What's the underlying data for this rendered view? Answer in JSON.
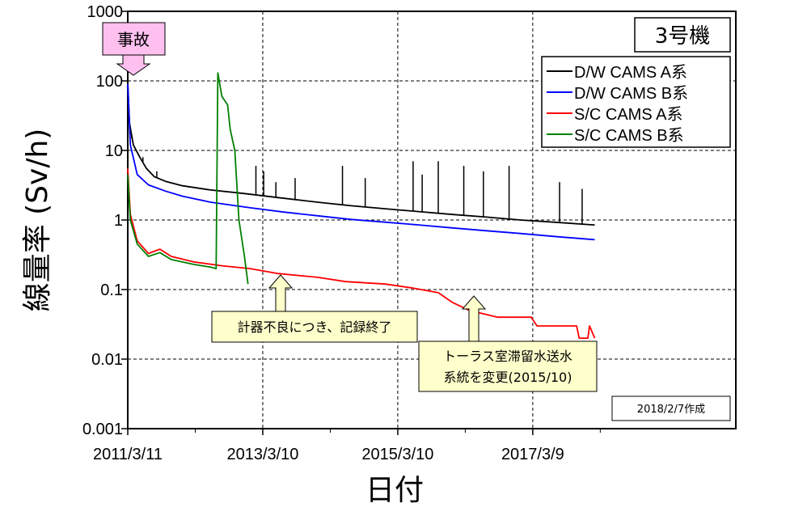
{
  "chart_data": {
    "type": "line",
    "unit_label": "3号機",
    "xlabel": "日付",
    "ylabel": "線量率 (Sv/h)",
    "y_scale": "log",
    "ylim": [
      0.001,
      1000
    ],
    "xlim": [
      "2011-03-11",
      "2020-03-11"
    ],
    "y_ticks": [
      "1000",
      "100",
      "10",
      "1",
      "0.1",
      "0.01",
      "0.001"
    ],
    "x_ticks": [
      {
        "date": "2011-03-11",
        "label": "2011/3/11"
      },
      {
        "date": "2013-03-10",
        "label": "2013/3/10"
      },
      {
        "date": "2015-03-10",
        "label": "2015/3/10"
      },
      {
        "date": "2017-03-09",
        "label": "2017/3/9"
      }
    ],
    "grid": true,
    "legend_position": "top-right",
    "series": [
      {
        "name": "D/W CAMS A系",
        "color": "#000000",
        "points": [
          [
            "2011-03-11",
            100
          ],
          [
            "2011-03-20",
            25
          ],
          [
            "2011-04-10",
            12
          ],
          [
            "2011-05-15",
            8
          ],
          [
            "2011-06-20",
            5.5
          ],
          [
            "2011-08-01",
            4.2
          ],
          [
            "2011-10-01",
            3.6
          ],
          [
            "2012-01-01",
            3.1
          ],
          [
            "2012-06-01",
            2.7
          ],
          [
            "2012-12-01",
            2.4
          ],
          [
            "2013-06-01",
            2.1
          ],
          [
            "2014-01-01",
            1.8
          ],
          [
            "2014-07-01",
            1.6
          ],
          [
            "2015-01-01",
            1.45
          ],
          [
            "2015-07-01",
            1.32
          ],
          [
            "2016-01-01",
            1.2
          ],
          [
            "2016-07-01",
            1.1
          ],
          [
            "2017-01-01",
            1.0
          ],
          [
            "2017-07-01",
            0.93
          ],
          [
            "2018-01-01",
            0.86
          ],
          [
            "2018-02-07",
            0.85
          ]
        ],
        "spikes": [
          [
            "2011-04-01",
            15
          ],
          [
            "2011-06-01",
            8
          ],
          [
            "2011-08-15",
            5
          ],
          [
            "2013-02-01",
            6
          ],
          [
            "2013-03-15",
            5
          ],
          [
            "2013-05-20",
            3.5
          ],
          [
            "2013-09-01",
            4
          ],
          [
            "2014-05-15",
            6
          ],
          [
            "2014-09-15",
            4
          ],
          [
            "2015-06-01",
            7
          ],
          [
            "2015-07-20",
            4.5
          ],
          [
            "2015-10-15",
            7
          ],
          [
            "2016-03-01",
            6
          ],
          [
            "2016-06-15",
            5
          ],
          [
            "2016-11-01",
            6
          ],
          [
            "2017-08-01",
            3.5
          ],
          [
            "2017-12-01",
            2.8
          ]
        ]
      },
      {
        "name": "D/W CAMS B系",
        "color": "#0000ff",
        "points": [
          [
            "2011-03-11",
            90
          ],
          [
            "2011-03-25",
            12
          ],
          [
            "2011-05-01",
            4.5
          ],
          [
            "2011-07-01",
            3.2
          ],
          [
            "2011-10-01",
            2.6
          ],
          [
            "2012-01-01",
            2.2
          ],
          [
            "2012-06-01",
            1.8
          ],
          [
            "2013-01-01",
            1.5
          ],
          [
            "2013-07-01",
            1.3
          ],
          [
            "2014-01-01",
            1.15
          ],
          [
            "2014-07-01",
            1.02
          ],
          [
            "2015-01-01",
            0.93
          ],
          [
            "2015-07-01",
            0.85
          ],
          [
            "2016-01-01",
            0.77
          ],
          [
            "2016-07-01",
            0.7
          ],
          [
            "2017-01-01",
            0.64
          ],
          [
            "2017-07-01",
            0.58
          ],
          [
            "2018-01-01",
            0.53
          ],
          [
            "2018-02-07",
            0.52
          ]
        ]
      },
      {
        "name": "S/C CAMS A系",
        "color": "#ff0000",
        "points": [
          [
            "2011-03-11",
            5.5
          ],
          [
            "2011-03-25",
            1.2
          ],
          [
            "2011-05-01",
            0.5
          ],
          [
            "2011-07-01",
            0.33
          ],
          [
            "2011-09-01",
            0.38
          ],
          [
            "2011-11-01",
            0.3
          ],
          [
            "2012-03-01",
            0.25
          ],
          [
            "2012-08-01",
            0.22
          ],
          [
            "2013-01-01",
            0.2
          ],
          [
            "2013-06-01",
            0.17
          ],
          [
            "2014-01-01",
            0.15
          ],
          [
            "2014-06-01",
            0.13
          ],
          [
            "2015-01-01",
            0.12
          ],
          [
            "2015-06-01",
            0.105
          ],
          [
            "2015-10-15",
            0.09
          ],
          [
            "2016-01-01",
            0.065
          ],
          [
            "2016-04-01",
            0.05
          ],
          [
            "2016-09-01",
            0.04
          ],
          [
            "2017-03-01",
            0.04
          ],
          [
            "2017-04-01",
            0.03
          ],
          [
            "2017-11-01",
            0.03
          ],
          [
            "2017-11-15",
            0.02
          ],
          [
            "2018-01-01",
            0.02
          ],
          [
            "2018-01-10",
            0.03
          ],
          [
            "2018-02-07",
            0.02
          ]
        ]
      },
      {
        "name": "S/C CAMS B系",
        "color": "#008000",
        "points": [
          [
            "2011-03-11",
            4.5
          ],
          [
            "2011-03-25",
            1.0
          ],
          [
            "2011-05-01",
            0.45
          ],
          [
            "2011-07-01",
            0.3
          ],
          [
            "2011-09-01",
            0.34
          ],
          [
            "2011-11-01",
            0.27
          ],
          [
            "2012-03-01",
            0.23
          ],
          [
            "2012-06-01",
            0.21
          ],
          [
            "2012-07-01",
            0.2
          ],
          [
            "2012-07-10",
            130
          ],
          [
            "2012-08-01",
            60
          ],
          [
            "2012-09-01",
            45
          ],
          [
            "2012-09-15",
            20
          ],
          [
            "2012-10-10",
            10
          ],
          [
            "2012-11-01",
            1.0
          ],
          [
            "2012-12-01",
            0.3
          ],
          [
            "2012-12-20",
            0.12
          ]
        ]
      }
    ],
    "annotations": [
      {
        "id": "accident",
        "text": "事故",
        "date": "2011-03-11",
        "color": "#ffc0f0"
      },
      {
        "id": "instrument-failure",
        "text": "計器不良につき、記録終了",
        "date": "2012-12-20",
        "value": 0.14
      },
      {
        "id": "transfer-change",
        "lines": [
          "トーラス室滞留水送水",
          "系統を変更(2015/10)"
        ],
        "date": "2015-10-10",
        "value": 0.085
      }
    ],
    "creation_note": "2018/2/7作成"
  }
}
